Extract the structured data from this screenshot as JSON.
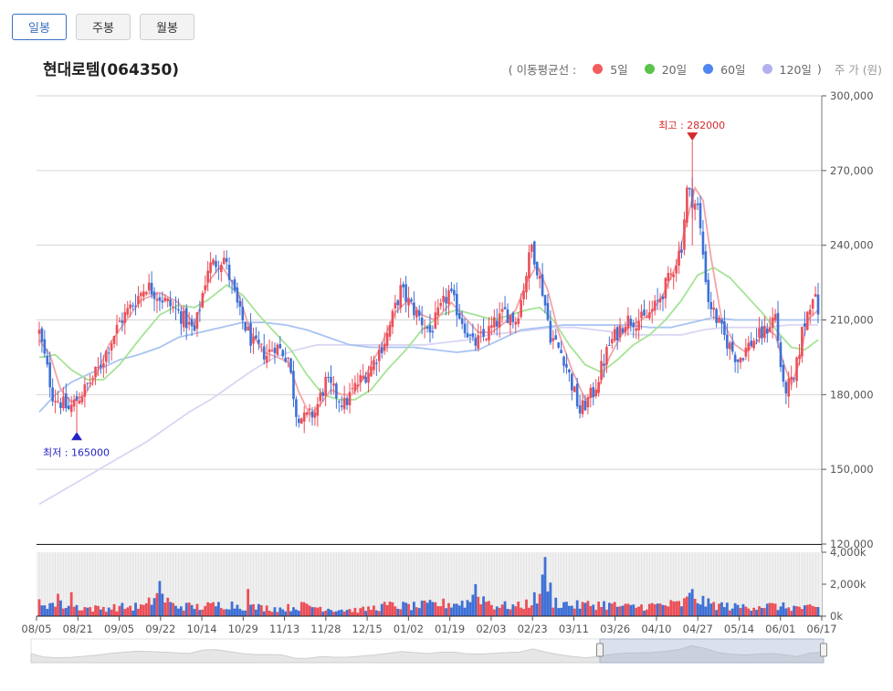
{
  "tabs": [
    {
      "label": "일봉",
      "active": true
    },
    {
      "label": "주봉",
      "active": false
    },
    {
      "label": "월봉",
      "active": false
    }
  ],
  "stock": {
    "name": "현대로템(064350)"
  },
  "legend": {
    "prefix": "( 이동평균선  :",
    "suffix": ")",
    "items": [
      {
        "label": "5일",
        "color": "#f25d5d"
      },
      {
        "label": "20일",
        "color": "#5cc24a"
      },
      {
        "label": "60일",
        "color": "#4f86f0"
      },
      {
        "label": "120일",
        "color": "#b3b0ee"
      }
    ],
    "unit": "주 가 (원)"
  },
  "colors": {
    "up": "#eb4f58",
    "down": "#3e70d6",
    "ma5": "#f3a4aa",
    "ma20": "#a6e396",
    "ma60": "#a8c4f2",
    "ma120": "#d9d5f4",
    "grid": "#d5d5d5"
  },
  "annotations": {
    "high_label": "최고 : 282000",
    "low_label": "최저 : 165000"
  },
  "chart_data": {
    "type": "candlestick",
    "price_axis": {
      "ticks": [
        "300,000",
        "270,000",
        "240,000",
        "210,000",
        "180,000",
        "150,000",
        "120,000"
      ],
      "min": 120000,
      "max": 300000
    },
    "volume_axis": {
      "ticks": [
        "4,000k",
        "2,000k",
        "0k"
      ],
      "min": 0,
      "max": 4000000
    },
    "x_ticks": [
      "08/05",
      "08/21",
      "09/05",
      "09/22",
      "10/14",
      "10/29",
      "11/13",
      "11/28",
      "12/15",
      "01/02",
      "01/19",
      "02/03",
      "02/23",
      "03/11",
      "03/26",
      "04/10",
      "04/27",
      "05/14",
      "06/01",
      "06/17"
    ],
    "high": {
      "value": 282000,
      "label": "최고 : 282000"
    },
    "low": {
      "value": 165000,
      "label": "최저 : 165000"
    },
    "close_path": [
      [
        0,
        205000
      ],
      [
        5,
        180000
      ],
      [
        11,
        174000
      ],
      [
        17,
        182000
      ],
      [
        22,
        190000
      ],
      [
        30,
        209000
      ],
      [
        40,
        224000
      ],
      [
        52,
        213000
      ],
      [
        58,
        205000
      ],
      [
        63,
        231000
      ],
      [
        69,
        235000
      ],
      [
        75,
        212000
      ],
      [
        80,
        200000
      ],
      [
        85,
        196000
      ],
      [
        88,
        200000
      ],
      [
        93,
        195000
      ],
      [
        96,
        173000
      ],
      [
        99,
        170000
      ],
      [
        103,
        173000
      ],
      [
        107,
        185000
      ],
      [
        111,
        180000
      ],
      [
        114,
        176000
      ],
      [
        118,
        183000
      ],
      [
        124,
        191000
      ],
      [
        130,
        204000
      ],
      [
        135,
        222000
      ],
      [
        140,
        214000
      ],
      [
        146,
        205000
      ],
      [
        153,
        221000
      ],
      [
        158,
        210000
      ],
      [
        162,
        200000
      ],
      [
        166,
        203000
      ],
      [
        170,
        208000
      ],
      [
        174,
        213000
      ],
      [
        178,
        210000
      ],
      [
        180,
        218000
      ],
      [
        184,
        240000
      ],
      [
        188,
        222000
      ],
      [
        191,
        204000
      ],
      [
        196,
        195000
      ],
      [
        202,
        173000
      ],
      [
        207,
        181000
      ],
      [
        213,
        200000
      ],
      [
        219,
        210000
      ],
      [
        226,
        210000
      ],
      [
        230,
        215000
      ],
      [
        236,
        228000
      ],
      [
        240,
        240000
      ],
      [
        242,
        262000
      ],
      [
        246,
        255000
      ],
      [
        250,
        218000
      ],
      [
        256,
        203000
      ],
      [
        261,
        194000
      ],
      [
        266,
        201000
      ],
      [
        271,
        205000
      ],
      [
        275,
        212000
      ],
      [
        278,
        182000
      ],
      [
        282,
        185000
      ],
      [
        285,
        205000
      ],
      [
        289,
        221000
      ],
      [
        291,
        214000
      ]
    ],
    "ma5_path": [
      [
        0,
        202000
      ],
      [
        4,
        196000
      ],
      [
        8,
        182000
      ],
      [
        12,
        177000
      ],
      [
        17,
        180000
      ],
      [
        21,
        187000
      ],
      [
        26,
        200000
      ],
      [
        32,
        209000
      ],
      [
        38,
        218000
      ],
      [
        45,
        221000
      ],
      [
        52,
        217000
      ],
      [
        58,
        208000
      ],
      [
        63,
        225000
      ],
      [
        68,
        232000
      ],
      [
        74,
        222000
      ],
      [
        79,
        205000
      ],
      [
        84,
        197000
      ],
      [
        89,
        195000
      ],
      [
        93,
        193000
      ],
      [
        97,
        181000
      ],
      [
        101,
        172000
      ],
      [
        105,
        176000
      ],
      [
        109,
        182000
      ],
      [
        113,
        180000
      ],
      [
        117,
        180000
      ],
      [
        122,
        188000
      ],
      [
        127,
        198000
      ],
      [
        133,
        213000
      ],
      [
        138,
        218000
      ],
      [
        143,
        212000
      ],
      [
        148,
        210000
      ],
      [
        154,
        217000
      ],
      [
        159,
        211000
      ],
      [
        164,
        205000
      ],
      [
        169,
        205000
      ],
      [
        174,
        209000
      ],
      [
        178,
        214000
      ],
      [
        182,
        225000
      ],
      [
        186,
        232000
      ],
      [
        190,
        222000
      ],
      [
        194,
        205000
      ],
      [
        199,
        190000
      ],
      [
        204,
        178000
      ],
      [
        208,
        180000
      ],
      [
        213,
        195000
      ],
      [
        218,
        205000
      ],
      [
        223,
        209000
      ],
      [
        228,
        212000
      ],
      [
        233,
        220000
      ],
      [
        238,
        232000
      ],
      [
        242,
        250000
      ],
      [
        245,
        263000
      ],
      [
        248,
        258000
      ],
      [
        251,
        235000
      ],
      [
        255,
        210000
      ],
      [
        260,
        200000
      ],
      [
        264,
        197000
      ],
      [
        268,
        201000
      ],
      [
        272,
        206000
      ],
      [
        275,
        204000
      ],
      [
        278,
        193000
      ],
      [
        281,
        184000
      ],
      [
        284,
        193000
      ],
      [
        287,
        210000
      ],
      [
        291,
        214000
      ]
    ],
    "ma20_path": [
      [
        0,
        195000
      ],
      [
        6,
        196000
      ],
      [
        12,
        190000
      ],
      [
        18,
        186000
      ],
      [
        24,
        186000
      ],
      [
        30,
        192000
      ],
      [
        38,
        203000
      ],
      [
        45,
        212000
      ],
      [
        52,
        216000
      ],
      [
        58,
        215000
      ],
      [
        63,
        218000
      ],
      [
        70,
        224000
      ],
      [
        76,
        220000
      ],
      [
        82,
        212000
      ],
      [
        88,
        205000
      ],
      [
        94,
        198000
      ],
      [
        100,
        188000
      ],
      [
        106,
        180000
      ],
      [
        112,
        178000
      ],
      [
        118,
        178000
      ],
      [
        124,
        182000
      ],
      [
        130,
        190000
      ],
      [
        137,
        198000
      ],
      [
        143,
        206000
      ],
      [
        150,
        212000
      ],
      [
        156,
        214000
      ],
      [
        163,
        212000
      ],
      [
        170,
        210000
      ],
      [
        176,
        212000
      ],
      [
        182,
        214000
      ],
      [
        187,
        215000
      ],
      [
        192,
        210000
      ],
      [
        198,
        200000
      ],
      [
        204,
        192000
      ],
      [
        210,
        189000
      ],
      [
        216,
        194000
      ],
      [
        222,
        200000
      ],
      [
        228,
        204000
      ],
      [
        234,
        210000
      ],
      [
        240,
        218000
      ],
      [
        246,
        228000
      ],
      [
        252,
        231000
      ],
      [
        258,
        227000
      ],
      [
        264,
        220000
      ],
      [
        270,
        213000
      ],
      [
        276,
        205000
      ],
      [
        281,
        199000
      ],
      [
        286,
        198000
      ],
      [
        291,
        202000
      ]
    ],
    "ma60_path": [
      [
        0,
        173000
      ],
      [
        6,
        180000
      ],
      [
        12,
        185000
      ],
      [
        18,
        188000
      ],
      [
        24,
        191000
      ],
      [
        30,
        194000
      ],
      [
        37,
        196000
      ],
      [
        45,
        199000
      ],
      [
        52,
        203000
      ],
      [
        60,
        205000
      ],
      [
        68,
        207000
      ],
      [
        76,
        209000
      ],
      [
        84,
        209000
      ],
      [
        92,
        208000
      ],
      [
        100,
        206000
      ],
      [
        108,
        203000
      ],
      [
        116,
        200000
      ],
      [
        124,
        199000
      ],
      [
        132,
        199000
      ],
      [
        140,
        199000
      ],
      [
        148,
        198000
      ],
      [
        156,
        197000
      ],
      [
        164,
        198000
      ],
      [
        172,
        202000
      ],
      [
        180,
        206000
      ],
      [
        188,
        207000
      ],
      [
        196,
        208000
      ],
      [
        204,
        208000
      ],
      [
        212,
        208000
      ],
      [
        220,
        208000
      ],
      [
        228,
        207000
      ],
      [
        236,
        207000
      ],
      [
        244,
        209000
      ],
      [
        252,
        211000
      ],
      [
        260,
        210000
      ],
      [
        268,
        210000
      ],
      [
        276,
        210000
      ],
      [
        284,
        210000
      ],
      [
        291,
        210000
      ]
    ],
    "ma120_path": [
      [
        0,
        136000
      ],
      [
        8,
        141000
      ],
      [
        16,
        146000
      ],
      [
        24,
        151000
      ],
      [
        32,
        156000
      ],
      [
        40,
        161000
      ],
      [
        48,
        167000
      ],
      [
        56,
        173000
      ],
      [
        64,
        178000
      ],
      [
        72,
        184000
      ],
      [
        80,
        190000
      ],
      [
        88,
        195000
      ],
      [
        96,
        198000
      ],
      [
        104,
        200000
      ],
      [
        112,
        200000
      ],
      [
        120,
        200000
      ],
      [
        128,
        200000
      ],
      [
        136,
        200000
      ],
      [
        144,
        200000
      ],
      [
        152,
        201000
      ],
      [
        160,
        202000
      ],
      [
        168,
        204000
      ],
      [
        176,
        205000
      ],
      [
        184,
        206000
      ],
      [
        192,
        207000
      ],
      [
        200,
        207000
      ],
      [
        208,
        206000
      ],
      [
        216,
        205000
      ],
      [
        224,
        204000
      ],
      [
        232,
        204000
      ],
      [
        240,
        204000
      ],
      [
        248,
        206000
      ],
      [
        256,
        207000
      ],
      [
        264,
        207000
      ],
      [
        272,
        207000
      ],
      [
        280,
        208000
      ],
      [
        291,
        208000
      ]
    ],
    "volume_path": [
      [
        0,
        900000
      ],
      [
        10,
        700000
      ],
      [
        20,
        500000
      ],
      [
        30,
        600000
      ],
      [
        40,
        650000
      ],
      [
        44,
        1500000
      ],
      [
        50,
        700000
      ],
      [
        60,
        600000
      ],
      [
        70,
        800000
      ],
      [
        80,
        600000
      ],
      [
        90,
        500000
      ],
      [
        100,
        700000
      ],
      [
        110,
        450000
      ],
      [
        120,
        400000
      ],
      [
        130,
        700000
      ],
      [
        140,
        650000
      ],
      [
        150,
        800000
      ],
      [
        160,
        900000
      ],
      [
        163,
        1500000
      ],
      [
        170,
        700000
      ],
      [
        180,
        650000
      ],
      [
        186,
        1200000
      ],
      [
        188,
        2000000
      ],
      [
        191,
        1000000
      ],
      [
        200,
        700000
      ],
      [
        210,
        800000
      ],
      [
        220,
        600000
      ],
      [
        230,
        700000
      ],
      [
        240,
        800000
      ],
      [
        244,
        1300000
      ],
      [
        250,
        800000
      ],
      [
        260,
        600000
      ],
      [
        270,
        700000
      ],
      [
        280,
        600000
      ],
      [
        291,
        500000
      ]
    ],
    "volume_spikes": [
      [
        189,
        3700000
      ],
      [
        191,
        2100000
      ],
      [
        163,
        2000000
      ],
      [
        45,
        2200000
      ],
      [
        7,
        1400000
      ],
      [
        12,
        1500000
      ],
      [
        78,
        1700000
      ],
      [
        244,
        1700000
      ]
    ]
  }
}
